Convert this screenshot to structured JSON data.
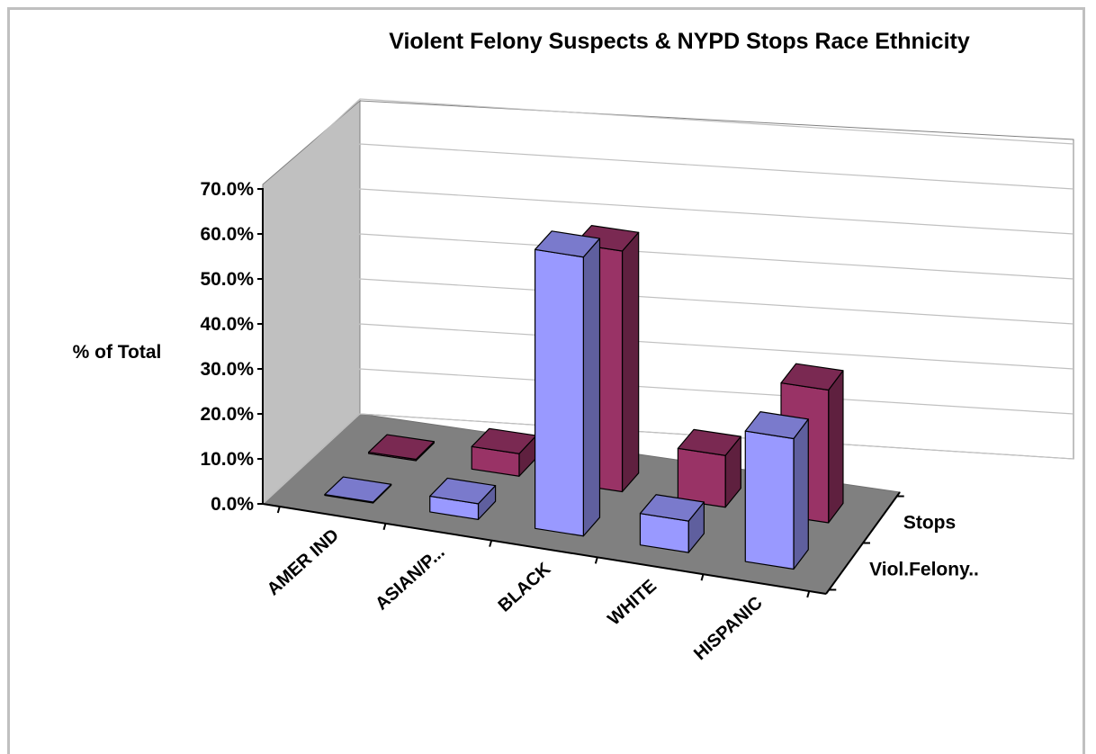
{
  "chart_data": {
    "type": "bar",
    "title": "Violent Felony Suspects & NYPD Stops Race Ethnicity",
    "ylabel": "% of Total",
    "ylim": [
      0,
      0.7
    ],
    "yticks": [
      "0.0%",
      "10.0%",
      "20.0%",
      "30.0%",
      "40.0%",
      "50.0%",
      "60.0%",
      "70.0%"
    ],
    "categories": [
      "AMER IND",
      "ASIAN/P...",
      "BLACK",
      "WHITE",
      "HISPANIC"
    ],
    "series": [
      {
        "name": "Viol.Felony..",
        "values": [
          0.002,
          0.035,
          0.62,
          0.07,
          0.29
        ],
        "color": "#9999ff"
      },
      {
        "name": "Stops",
        "values": [
          0.003,
          0.05,
          0.535,
          0.115,
          0.295
        ],
        "color": "#993366"
      }
    ],
    "grid": true,
    "three_d": true
  }
}
